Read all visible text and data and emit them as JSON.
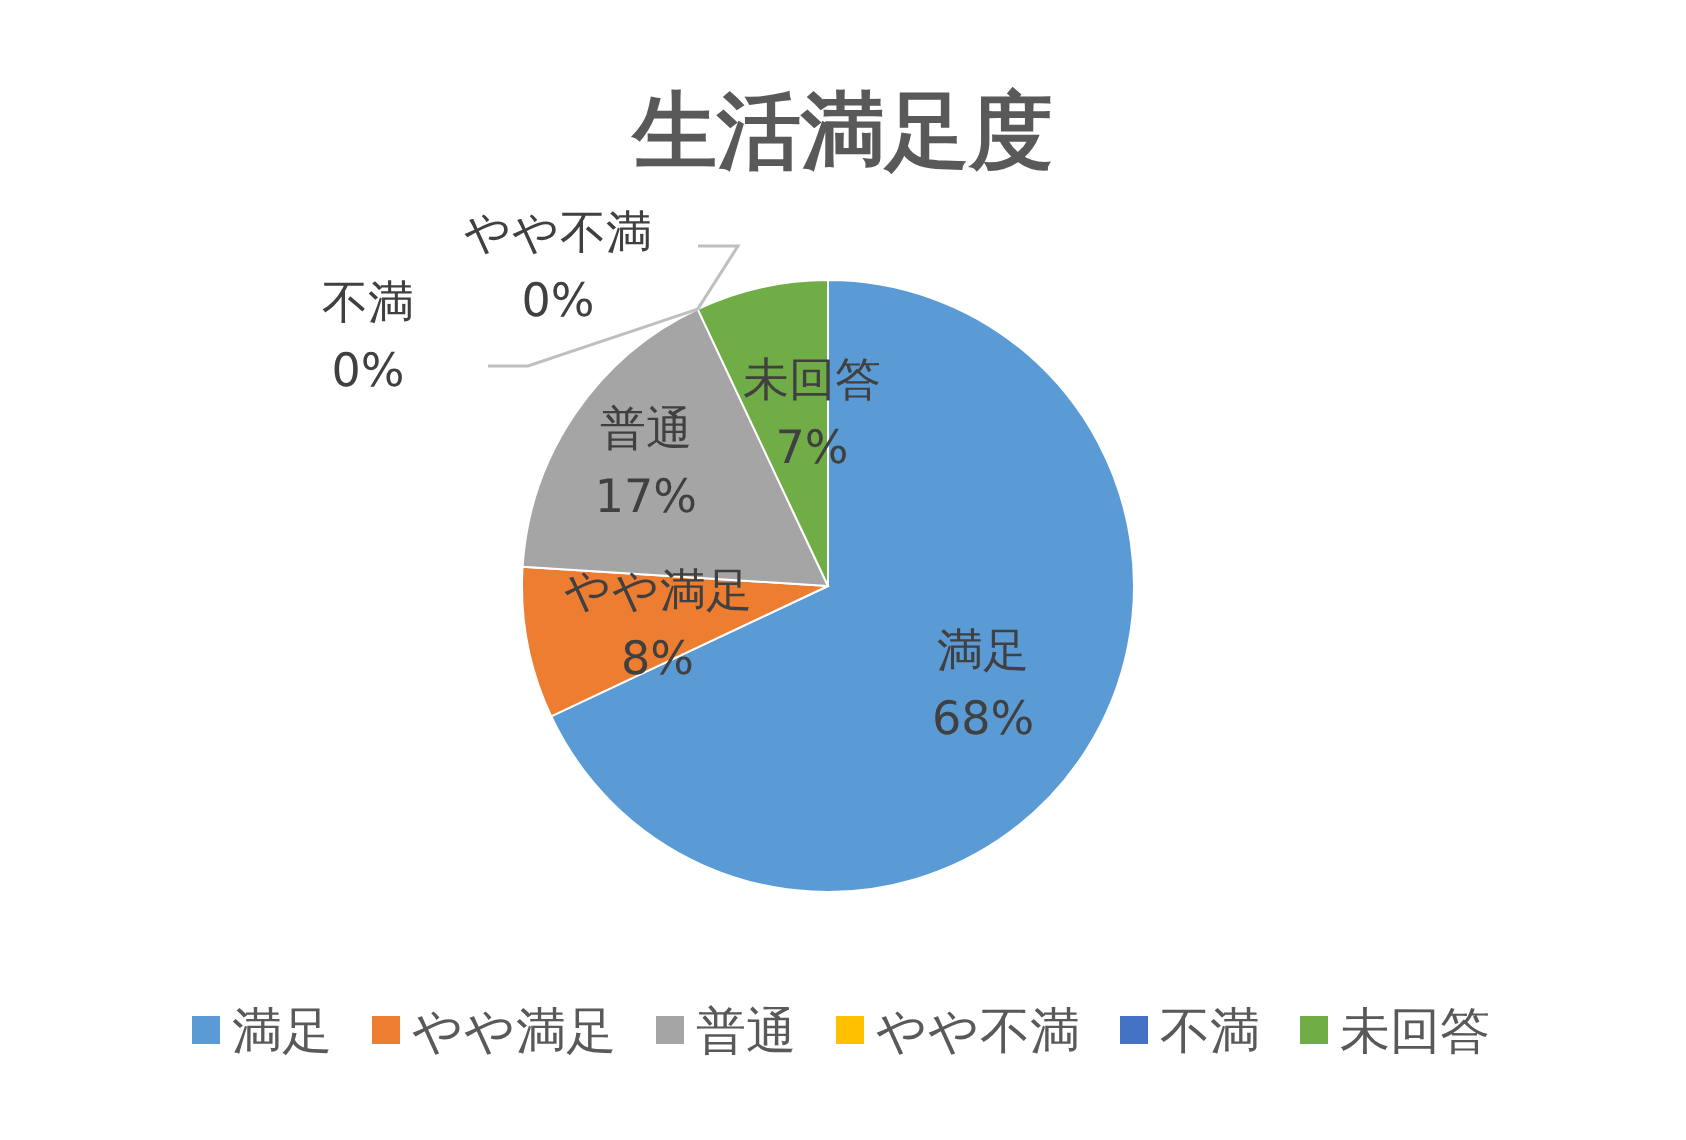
{
  "chart_data": {
    "type": "pie",
    "title": "生活満足度",
    "categories": [
      "満足",
      "やや満足",
      "普通",
      "やや不満",
      "不満",
      "未回答"
    ],
    "values": [
      68,
      8,
      17,
      0,
      0,
      7
    ],
    "colors": [
      "#5b9bd5",
      "#ed7d31",
      "#a5a5a5",
      "#ffc000",
      "#4472c4",
      "#70ad47"
    ],
    "value_labels": [
      "68%",
      "8%",
      "17%",
      "0%",
      "0%",
      "7%"
    ],
    "legend": "bottom"
  }
}
